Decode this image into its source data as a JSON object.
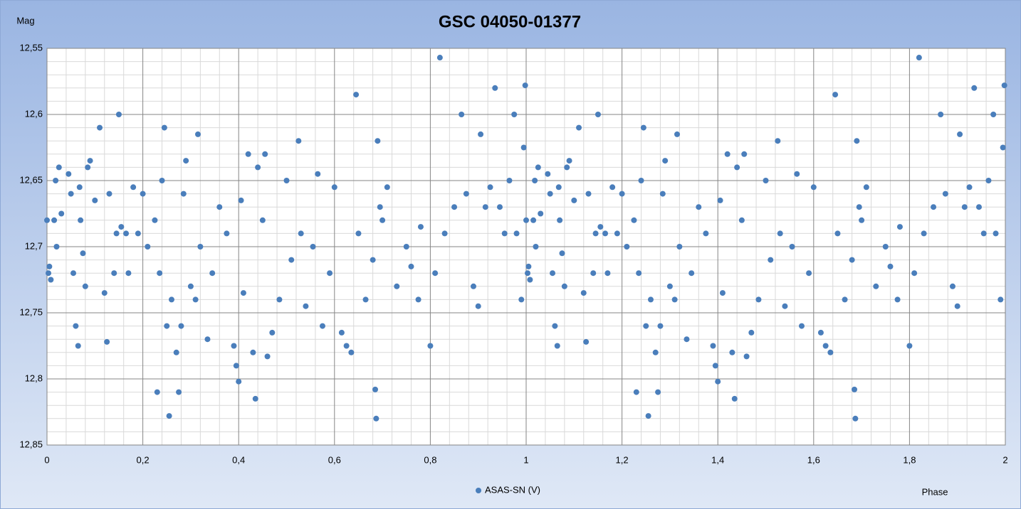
{
  "chart_data": {
    "type": "scatter",
    "title": "GSC 04050-01377",
    "y_label": "Mag",
    "x_label": "Phase",
    "xlim": [
      0,
      2
    ],
    "ylim": [
      12.55,
      12.85
    ],
    "y_inverted": true,
    "grid": true,
    "legend": "bottom",
    "xticks": [
      0,
      {
        "value": 0.2,
        "label": "0,2"
      },
      {
        "value": 0.4,
        "label": "0,4"
      },
      {
        "value": 0.6,
        "label": "0,6"
      },
      {
        "value": 0.8,
        "label": "0,8"
      },
      1,
      {
        "value": 1.2,
        "label": "1,2"
      },
      {
        "value": 1.4,
        "label": "1,4"
      },
      {
        "value": 1.6,
        "label": "1,6"
      },
      {
        "value": 1.8,
        "label": "1,8"
      },
      2
    ],
    "yticks": [
      {
        "value": 12.55,
        "label": "12,55"
      },
      {
        "value": 12.6,
        "label": "12,6"
      },
      {
        "value": 12.65,
        "label": "12,65"
      },
      {
        "value": 12.7,
        "label": "12,7"
      },
      {
        "value": 12.75,
        "label": "12,75"
      },
      {
        "value": 12.8,
        "label": "12,8"
      },
      {
        "value": 12.85,
        "label": "12,85"
      }
    ],
    "series": [
      {
        "name": "ASAS-SN (V)",
        "color": "#4a7ebb",
        "x": [
          0,
          0.003,
          0.005,
          0.008,
          0.015,
          0.018,
          0.02,
          0.025,
          0.03,
          0.045,
          0.05,
          0.055,
          0.06,
          0.065,
          0.068,
          0.07,
          0.075,
          0.08,
          0.085,
          0.09,
          0.1,
          0.11,
          0.12,
          0.125,
          0.13,
          0.14,
          0.145,
          0.15,
          0.155,
          0.165,
          0.17,
          0.18,
          0.19,
          0.2,
          0.21,
          0.225,
          0.23,
          0.235,
          0.24,
          0.245,
          0.25,
          0.255,
          0.26,
          0.27,
          0.275,
          0.28,
          0.285,
          0.29,
          0.3,
          0.31,
          0.315,
          0.32,
          0.335,
          0.345,
          0.36,
          0.375,
          0.39,
          0.395,
          0.4,
          0.405,
          0.41,
          0.42,
          0.43,
          0.435,
          0.44,
          0.45,
          0.455,
          0.46,
          0.47,
          0.485,
          0.5,
          0.51,
          0.525,
          0.53,
          0.54,
          0.555,
          0.565,
          0.575,
          0.59,
          0.6,
          0.615,
          0.625,
          0.635,
          0.645,
          0.65,
          0.665,
          0.68,
          0.685,
          0.687,
          0.69,
          0.695,
          0.7,
          0.71,
          0.73,
          0.75,
          0.76,
          0.775,
          0.78,
          0.8,
          0.81,
          0.82,
          0.83,
          0.85,
          0.865,
          0.875,
          0.89,
          0.9,
          0.905,
          0.915,
          0.925,
          0.935,
          0.945,
          0.955,
          0.965,
          0.975,
          0.98,
          0.99,
          0.995,
          0.998,
          1.0,
          1.003,
          1.005,
          1.008,
          1.015,
          1.018,
          1.02,
          1.025,
          1.03,
          1.045,
          1.05,
          1.055,
          1.06,
          1.065,
          1.068,
          1.07,
          1.075,
          1.08,
          1.085,
          1.09,
          1.1,
          1.11,
          1.12,
          1.125,
          1.13,
          1.14,
          1.145,
          1.15,
          1.155,
          1.165,
          1.17,
          1.18,
          1.19,
          1.2,
          1.21,
          1.225,
          1.23,
          1.235,
          1.24,
          1.245,
          1.25,
          1.255,
          1.26,
          1.27,
          1.275,
          1.28,
          1.285,
          1.29,
          1.3,
          1.31,
          1.315,
          1.32,
          1.335,
          1.345,
          1.36,
          1.375,
          1.39,
          1.395,
          1.4,
          1.405,
          1.41,
          1.42,
          1.43,
          1.435,
          1.44,
          1.45,
          1.455,
          1.46,
          1.47,
          1.485,
          1.5,
          1.51,
          1.525,
          1.53,
          1.54,
          1.555,
          1.565,
          1.575,
          1.59,
          1.6,
          1.615,
          1.625,
          1.635,
          1.645,
          1.65,
          1.665,
          1.68,
          1.685,
          1.687,
          1.69,
          1.695,
          1.7,
          1.71,
          1.73,
          1.75,
          1.76,
          1.775,
          1.78,
          1.8,
          1.81,
          1.82,
          1.83,
          1.85,
          1.865,
          1.875,
          1.89,
          1.9,
          1.905,
          1.915,
          1.925,
          1.935,
          1.945,
          1.955,
          1.965,
          1.975,
          1.98,
          1.99,
          1.995,
          1.998
        ],
        "values": [
          12.68,
          12.72,
          12.715,
          12.725,
          12.68,
          12.65,
          12.7,
          12.64,
          12.675,
          12.645,
          12.66,
          12.72,
          12.76,
          12.775,
          12.655,
          12.68,
          12.705,
          12.73,
          12.64,
          12.635,
          12.665,
          12.61,
          12.735,
          12.772,
          12.66,
          12.72,
          12.69,
          12.6,
          12.685,
          12.69,
          12.72,
          12.655,
          12.69,
          12.66,
          12.7,
          12.68,
          12.81,
          12.72,
          12.65,
          12.61,
          12.76,
          12.828,
          12.74,
          12.78,
          12.81,
          12.76,
          12.66,
          12.635,
          12.73,
          12.74,
          12.615,
          12.7,
          12.77,
          12.72,
          12.67,
          12.69,
          12.775,
          12.79,
          12.802,
          12.665,
          12.735,
          12.63,
          12.78,
          12.815,
          12.64,
          12.68,
          12.63,
          12.783,
          12.765,
          12.74,
          12.65,
          12.71,
          12.62,
          12.69,
          12.745,
          12.7,
          12.645,
          12.76,
          12.72,
          12.655,
          12.765,
          12.775,
          12.78,
          12.585,
          12.69,
          12.74,
          12.71,
          12.808,
          12.83,
          12.62,
          12.67,
          12.68,
          12.655,
          12.73,
          12.7,
          12.715,
          12.74,
          12.685,
          12.775,
          12.72,
          12.557,
          12.69,
          12.67,
          12.6,
          12.66,
          12.73,
          12.745,
          12.615,
          12.67,
          12.655,
          12.58,
          12.67,
          12.69,
          12.65,
          12.6,
          12.69,
          12.74,
          12.625,
          12.578,
          12.68,
          12.72,
          12.715,
          12.725,
          12.68,
          12.65,
          12.7,
          12.64,
          12.675,
          12.645,
          12.66,
          12.72,
          12.76,
          12.775,
          12.655,
          12.68,
          12.705,
          12.73,
          12.64,
          12.635,
          12.665,
          12.61,
          12.735,
          12.772,
          12.66,
          12.72,
          12.69,
          12.6,
          12.685,
          12.69,
          12.72,
          12.655,
          12.69,
          12.66,
          12.7,
          12.68,
          12.81,
          12.72,
          12.65,
          12.61,
          12.76,
          12.828,
          12.74,
          12.78,
          12.81,
          12.76,
          12.66,
          12.635,
          12.73,
          12.74,
          12.615,
          12.7,
          12.77,
          12.72,
          12.67,
          12.69,
          12.775,
          12.79,
          12.802,
          12.665,
          12.735,
          12.63,
          12.78,
          12.815,
          12.64,
          12.68,
          12.63,
          12.783,
          12.765,
          12.74,
          12.65,
          12.71,
          12.62,
          12.69,
          12.745,
          12.7,
          12.645,
          12.76,
          12.72,
          12.655,
          12.765,
          12.775,
          12.78,
          12.585,
          12.69,
          12.74,
          12.71,
          12.808,
          12.83,
          12.62,
          12.67,
          12.68,
          12.655,
          12.73,
          12.7,
          12.715,
          12.74,
          12.685,
          12.775,
          12.72,
          12.557,
          12.69,
          12.67,
          12.6,
          12.66,
          12.73,
          12.745,
          12.615,
          12.67,
          12.655,
          12.58,
          12.67,
          12.69,
          12.65,
          12.6,
          12.69,
          12.74,
          12.625,
          12.578
        ]
      }
    ]
  }
}
